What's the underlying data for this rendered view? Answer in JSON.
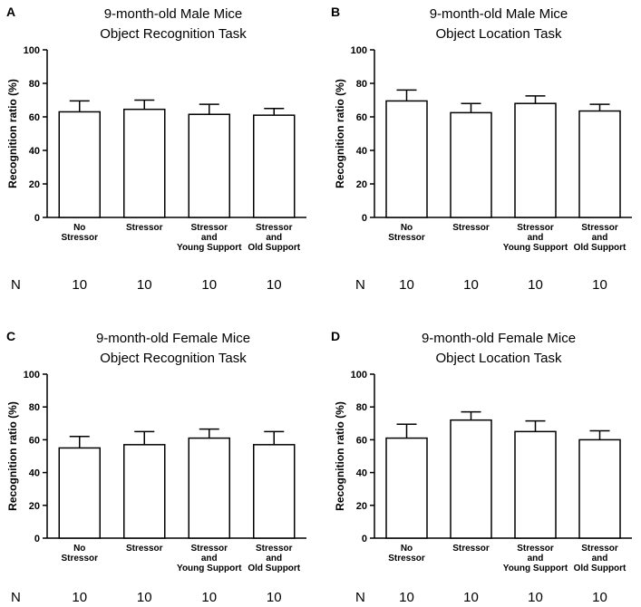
{
  "chart_data": [
    {
      "panel": "A",
      "type": "bar",
      "title": "9-month-old Male Mice",
      "subtitle": "Object Recognition Task",
      "ylabel": "Recognition ratio (%)",
      "ylim": [
        0,
        100
      ],
      "yticks": [
        0,
        20,
        40,
        60,
        80,
        100
      ],
      "categories": [
        [
          "No",
          "Stressor"
        ],
        [
          "Stressor"
        ],
        [
          "Stressor",
          "and",
          "Young Support"
        ],
        [
          "Stressor",
          "and",
          "Old Support"
        ]
      ],
      "values": [
        63,
        64.5,
        61.5,
        61
      ],
      "errors": [
        6.5,
        5.5,
        6,
        4
      ],
      "n_label": "N",
      "n_values": [
        "10",
        "10",
        "10",
        "10"
      ]
    },
    {
      "panel": "B",
      "type": "bar",
      "title": "9-month-old Male Mice",
      "subtitle": "Object Location Task",
      "ylabel": "Recognition ratio (%)",
      "ylim": [
        0,
        100
      ],
      "yticks": [
        0,
        20,
        40,
        60,
        80,
        100
      ],
      "categories": [
        [
          "No",
          "Stressor"
        ],
        [
          "Stressor"
        ],
        [
          "Stressor",
          "and",
          "Young Support"
        ],
        [
          "Stressor",
          "and",
          "Old Support"
        ]
      ],
      "values": [
        69.5,
        62.5,
        68,
        63.5
      ],
      "errors": [
        6.5,
        5.5,
        4.5,
        4
      ],
      "n_label": "N",
      "n_values": [
        "10",
        "10",
        "10",
        "10"
      ]
    },
    {
      "panel": "C",
      "type": "bar",
      "title": "9-month-old Female Mice",
      "subtitle": "Object Recognition Task",
      "ylabel": "Recognition ratio (%)",
      "ylim": [
        0,
        100
      ],
      "yticks": [
        0,
        20,
        40,
        60,
        80,
        100
      ],
      "categories": [
        [
          "No",
          "Stressor"
        ],
        [
          "Stressor"
        ],
        [
          "Stressor",
          "and",
          "Young Support"
        ],
        [
          "Stressor",
          "and",
          "Old Support"
        ]
      ],
      "values": [
        55,
        57,
        61,
        57
      ],
      "errors": [
        7,
        8,
        5.5,
        8
      ],
      "n_label": "N",
      "n_values": [
        "10",
        "10",
        "10",
        "10"
      ]
    },
    {
      "panel": "D",
      "type": "bar",
      "title": "9-month-old Female Mice",
      "subtitle": "Object Location Task",
      "ylabel": "Recognition ratio (%)",
      "ylim": [
        0,
        100
      ],
      "yticks": [
        0,
        20,
        40,
        60,
        80,
        100
      ],
      "categories": [
        [
          "No",
          "Stressor"
        ],
        [
          "Stressor"
        ],
        [
          "Stressor",
          "and",
          "Young Support"
        ],
        [
          "Stressor",
          "and",
          "Old Support"
        ]
      ],
      "values": [
        61,
        72,
        65,
        60
      ],
      "errors": [
        8.5,
        5,
        6.5,
        5.5
      ],
      "n_label": "N",
      "n_values": [
        "10",
        "10",
        "10",
        "10"
      ]
    }
  ]
}
